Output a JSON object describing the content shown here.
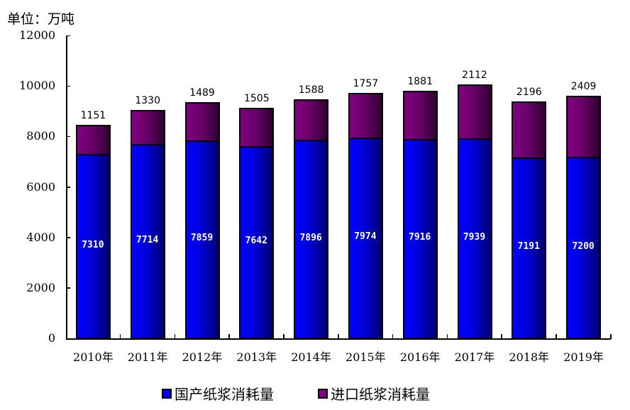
{
  "chart_data": {
    "type": "bar",
    "stacked": true,
    "title": "",
    "unit_label": "单位：万吨",
    "xlabel": "",
    "ylabel": "",
    "ylim": [
      0,
      12000
    ],
    "yticks": [
      "0",
      "2000",
      "4000",
      "6000",
      "8000",
      "10000",
      "12000"
    ],
    "grid": false,
    "legend_position": "bottom",
    "categories": [
      "2010年",
      "2011年",
      "2012年",
      "2013年",
      "2014年",
      "2015年",
      "2016年",
      "2017年",
      "2018年",
      "2019年"
    ],
    "series": [
      {
        "name": "国产纸浆消耗量",
        "color": "#0000ff",
        "values": [
          7310,
          7714,
          7859,
          7642,
          7896,
          7974,
          7916,
          7939,
          7191,
          7200
        ]
      },
      {
        "name": "进口纸浆消耗量",
        "color": "#800080",
        "values": [
          1151,
          1330,
          1489,
          1505,
          1588,
          1757,
          1881,
          2112,
          2196,
          2409
        ]
      }
    ]
  }
}
